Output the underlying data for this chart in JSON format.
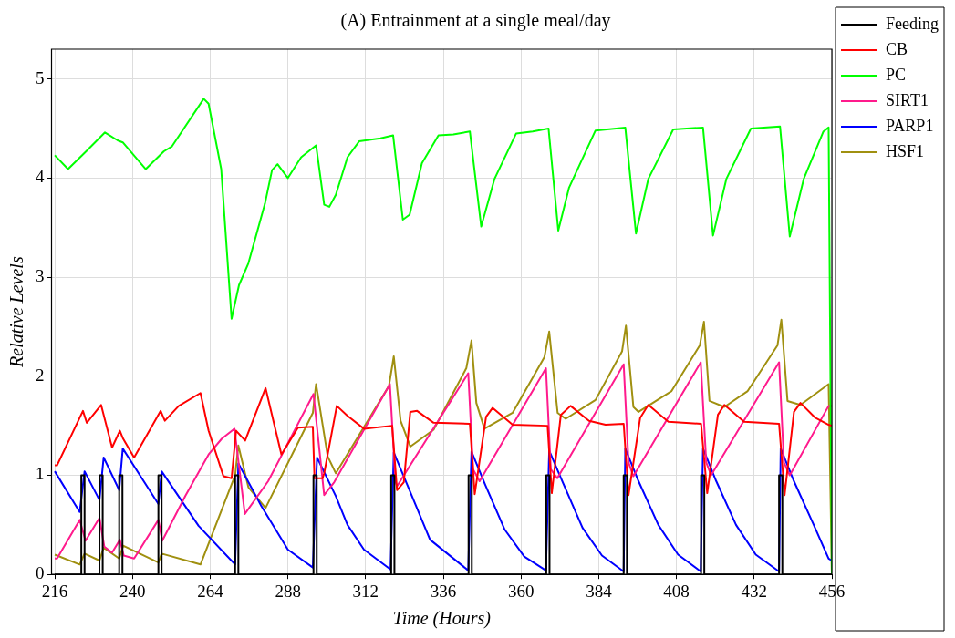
{
  "chart_data": {
    "type": "line",
    "title": "(A) Entrainment at a single meal/day",
    "xlabel": "Time (Hours)",
    "ylabel": "Relative Levels",
    "xlim": [
      215,
      456
    ],
    "xticks": [
      216,
      240,
      264,
      288,
      312,
      336,
      360,
      384,
      408,
      432,
      456
    ],
    "ylim": [
      0,
      5.3
    ],
    "yticks": [
      0,
      1,
      2,
      3,
      4,
      5
    ],
    "grid": true,
    "legend": "right",
    "marker": "none",
    "line_style": "solid",
    "series": [
      {
        "name": "Feeding",
        "color": "#000000",
        "x": [
          216,
          224.2,
          224.2,
          225.2,
          225.2,
          229.8,
          229.8,
          230.8,
          230.8,
          235.9,
          235.9,
          236.9,
          236.9,
          248,
          248,
          249,
          249,
          271.7,
          271.7,
          272.7,
          272.7,
          295.9,
          295.9,
          296.9,
          296.9,
          319.9,
          319.9,
          320.9,
          320.9,
          343.8,
          343.8,
          344.8,
          344.8,
          367.8,
          367.8,
          368.8,
          368.8,
          391.7,
          391.7,
          392.7,
          392.7,
          415.6,
          415.6,
          416.6,
          416.6,
          439.7,
          439.7,
          440.7,
          440.7,
          456
        ],
        "values": [
          0,
          0,
          1,
          1,
          0,
          0,
          1,
          1,
          0,
          0,
          1,
          1,
          0,
          0,
          1,
          1,
          0,
          0,
          1,
          1,
          0,
          0,
          1,
          1,
          0,
          0,
          1,
          1,
          0,
          0,
          1,
          1,
          0,
          0,
          1,
          1,
          0,
          0,
          1,
          1,
          0,
          0,
          1,
          1,
          0,
          0,
          1,
          1,
          0,
          0
        ]
      },
      {
        "name": "CB",
        "color": "#ff0000",
        "x": [
          216,
          216.7,
          224.7,
          225.9,
          230.3,
          233.7,
          236.1,
          237.1,
          240.5,
          248.7,
          250,
          254.3,
          261,
          263.5,
          268.1,
          270.6,
          272,
          274.8,
          281.1,
          286,
          291.1,
          295.7,
          296.2,
          298.7,
          299.2,
          303.1,
          306.4,
          311.5,
          320.2,
          321.7,
          323.8,
          325.8,
          327.9,
          333,
          344.2,
          345.7,
          349.2,
          351.2,
          357.4,
          368.2,
          369.5,
          372.3,
          375.3,
          381,
          386.1,
          391.7,
          393.2,
          396.8,
          399.3,
          405.5,
          415.6,
          417.5,
          420.8,
          422.8,
          428.9,
          439.7,
          441.4,
          444.3,
          446.3,
          450.9,
          455,
          456
        ],
        "values": [
          1.1,
          1.1,
          1.65,
          1.53,
          1.71,
          1.28,
          1.45,
          1.37,
          1.18,
          1.65,
          1.55,
          1.7,
          1.83,
          1.45,
          0.99,
          0.97,
          1.45,
          1.35,
          1.88,
          1.21,
          1.48,
          1.49,
          0.97,
          0.97,
          1.02,
          1.7,
          1.6,
          1.47,
          1.5,
          0.85,
          0.93,
          1.64,
          1.65,
          1.53,
          1.52,
          0.81,
          1.59,
          1.68,
          1.51,
          1.5,
          0.82,
          1.61,
          1.7,
          1.55,
          1.51,
          1.52,
          0.8,
          1.58,
          1.71,
          1.54,
          1.52,
          0.82,
          1.61,
          1.71,
          1.54,
          1.52,
          0.8,
          1.64,
          1.73,
          1.58,
          1.51,
          1.5
        ]
      },
      {
        "name": "PC",
        "color": "#00ff00",
        "x": [
          216,
          220.1,
          225.7,
          231.5,
          235.4,
          237,
          244.1,
          249.7,
          252.2,
          262,
          263.5,
          267.4,
          270.6,
          272.9,
          275.8,
          280.9,
          283.1,
          284.8,
          288,
          292.1,
          296.7,
          299.2,
          300.8,
          302.8,
          306.4,
          310,
          316.6,
          320.5,
          323.5,
          325.6,
          329.4,
          334.5,
          339.1,
          344.2,
          347.7,
          351.8,
          358.5,
          363.6,
          368.5,
          371.5,
          374.8,
          383,
          392.2,
          395.5,
          399.3,
          407,
          416.2,
          419.3,
          423.4,
          431,
          440,
          443,
          447.3,
          453.4,
          455,
          456
        ],
        "values": [
          4.23,
          4.09,
          4.27,
          4.46,
          4.38,
          4.36,
          4.09,
          4.27,
          4.32,
          4.8,
          4.75,
          4.09,
          2.58,
          2.92,
          3.14,
          3.74,
          4.08,
          4.14,
          4.0,
          4.21,
          4.33,
          3.73,
          3.71,
          3.83,
          4.21,
          4.37,
          4.4,
          4.43,
          3.58,
          3.63,
          4.15,
          4.43,
          4.44,
          4.47,
          3.51,
          3.99,
          4.45,
          4.47,
          4.5,
          3.47,
          3.9,
          4.48,
          4.51,
          3.44,
          3.99,
          4.49,
          4.51,
          3.42,
          3.99,
          4.5,
          4.52,
          3.41,
          3.99,
          4.47,
          4.51,
          0
        ]
      },
      {
        "name": "SIRT1",
        "color": "#ff1a8c",
        "x": [
          216,
          216.7,
          223.7,
          225.5,
          229.8,
          231.3,
          233.7,
          236.1,
          237.3,
          240.5,
          248,
          249.2,
          256.3,
          263.5,
          267.6,
          271.5,
          274.7,
          281.9,
          295.9,
          299.2,
          302.3,
          319.5,
          321.2,
          321.7,
          343.7,
          345.2,
          347.2,
          367.7,
          369.2,
          371.2,
          391.7,
          393.2,
          394.7,
          415.5,
          417.2,
          418.7,
          439.7,
          441.2,
          443,
          455,
          456
        ],
        "values": [
          0.16,
          0.16,
          0.55,
          0.34,
          0.57,
          0.28,
          0.22,
          0.35,
          0.19,
          0.16,
          0.55,
          0.34,
          0.79,
          1.21,
          1.37,
          1.47,
          0.61,
          0.94,
          1.82,
          0.8,
          0.93,
          1.92,
          0.94,
          0.89,
          2.03,
          1.06,
          0.94,
          2.08,
          1.06,
          0.97,
          2.12,
          1.13,
          0.99,
          2.14,
          1.13,
          1.0,
          2.14,
          1.13,
          1.0,
          1.7,
          1.7
        ]
      },
      {
        "name": "PARP1",
        "color": "#0000ff",
        "x": [
          216,
          223.7,
          225.2,
          229.8,
          231.1,
          235.9,
          237,
          248,
          249,
          260.4,
          271.7,
          272.7,
          279.8,
          288,
          295.7,
          297,
          302.8,
          306.4,
          311.5,
          319.7,
          320.7,
          325.8,
          331.9,
          343.7,
          344.7,
          349,
          355,
          361,
          367.7,
          368.7,
          373,
          379,
          385,
          391.7,
          392.2,
          396.3,
          402.4,
          408.5,
          415.5,
          416.2,
          420.3,
          426.4,
          432.5,
          439.7,
          440.2,
          444.3,
          450.4,
          455,
          456
        ],
        "values": [
          1.04,
          0.63,
          1.04,
          0.75,
          1.18,
          0.85,
          1.27,
          0.71,
          1.04,
          0.49,
          0.1,
          1.12,
          0.69,
          0.25,
          0.07,
          1.18,
          0.79,
          0.5,
          0.25,
          0.05,
          1.23,
          0.83,
          0.35,
          0.04,
          1.24,
          0.9,
          0.45,
          0.18,
          0.04,
          1.25,
          0.92,
          0.47,
          0.19,
          0.03,
          1.27,
          0.94,
          0.5,
          0.2,
          0.03,
          1.27,
          0.94,
          0.5,
          0.2,
          0.03,
          1.27,
          0.94,
          0.5,
          0.16,
          0.14
        ]
      },
      {
        "name": "HSF1",
        "color": "#a09010",
        "x": [
          216,
          223.7,
          225.2,
          229.8,
          231.1,
          235.9,
          237.1,
          248,
          249,
          261,
          271.7,
          272.7,
          275.8,
          281.1,
          295.7,
          296.7,
          300.3,
          302.8,
          319.2,
          320.7,
          322.8,
          325.8,
          333,
          343.1,
          344.7,
          346.2,
          348.7,
          357.4,
          367.2,
          368.7,
          371.3,
          373.8,
          383,
          391.2,
          392.4,
          394.7,
          396.3,
          406.5,
          415.2,
          416.5,
          418.2,
          422.8,
          430,
          439.2,
          440.4,
          442.3,
          446.3,
          455,
          456
        ],
        "values": [
          0.2,
          0.1,
          0.21,
          0.14,
          0.27,
          0.16,
          0.29,
          0.12,
          0.21,
          0.1,
          1.0,
          1.3,
          0.88,
          0.67,
          1.63,
          1.92,
          1.19,
          1.02,
          1.9,
          2.2,
          1.55,
          1.29,
          1.46,
          2.08,
          2.36,
          1.73,
          1.47,
          1.63,
          2.19,
          2.45,
          1.63,
          1.57,
          1.76,
          2.25,
          2.51,
          1.69,
          1.64,
          1.85,
          2.31,
          2.55,
          1.75,
          1.69,
          1.85,
          2.31,
          2.57,
          1.75,
          1.71,
          1.92,
          0
        ]
      }
    ]
  }
}
